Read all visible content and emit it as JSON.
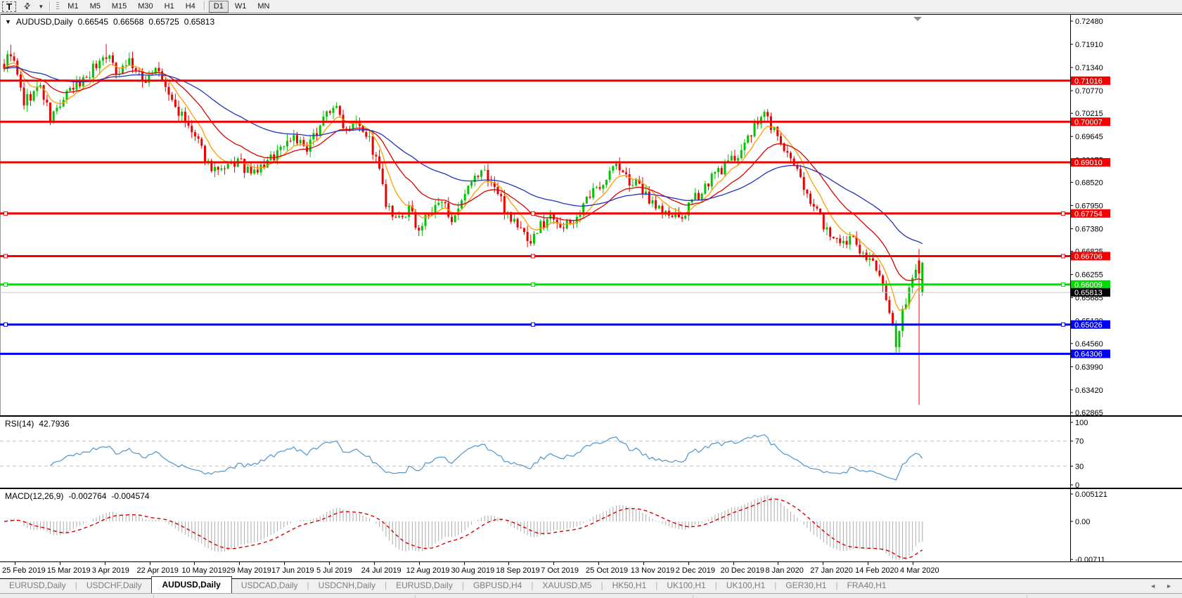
{
  "toolbar": {
    "text_tool": "T",
    "cursor_tool_icon": "crosshair-arrows",
    "timeframes": [
      "M1",
      "M5",
      "M15",
      "M30",
      "H1",
      "H4",
      "D1",
      "W1",
      "MN"
    ],
    "active_timeframe": "D1"
  },
  "chart": {
    "symbol_label": "AUDUSD,Daily",
    "ohlc": {
      "open": "0.66545",
      "high": "0.66568",
      "low": "0.65725",
      "close": "0.65813"
    },
    "price_axis": {
      "ticks": [
        "0.72480",
        "0.71910",
        "0.71340",
        "0.70770",
        "0.70215",
        "0.69645",
        "0.69075",
        "0.68520",
        "0.67950",
        "0.67380",
        "0.66825",
        "0.66255",
        "0.65685",
        "0.65120",
        "0.64560",
        "0.63990",
        "0.63420",
        "0.62865"
      ]
    },
    "hlines": [
      {
        "label": "0.71016",
        "price": 0.71016,
        "color": "#F40000",
        "width": 3,
        "handles": false
      },
      {
        "label": "0.70007",
        "price": 0.70007,
        "color": "#F40000",
        "width": 3,
        "handles": false
      },
      {
        "label": "0.69010",
        "price": 0.6901,
        "color": "#F40000",
        "width": 3,
        "handles": false
      },
      {
        "label": "0.67754",
        "price": 0.67754,
        "color": "#F40000",
        "width": 3,
        "handles": true
      },
      {
        "label": "0.66706",
        "price": 0.66706,
        "color": "#F40000",
        "width": 3,
        "handles": true
      },
      {
        "label": "0.66009",
        "price": 0.66009,
        "color": "#00DC00",
        "width": 3,
        "handles": true
      },
      {
        "label": "0.65026",
        "price": 0.65026,
        "color": "#0000F0",
        "width": 3,
        "handles": true
      },
      {
        "label": "0.64306",
        "price": 0.64306,
        "color": "#0000F0",
        "width": 3,
        "handles": false
      }
    ],
    "bid_line": {
      "label": "0.65813",
      "price": 0.65813,
      "line_color": "#C8C8C8",
      "box_color": "#000000"
    },
    "dates": [
      "25 Feb 2019",
      "15 Mar 2019",
      "3 Apr 2019",
      "22 Apr 2019",
      "10 May 2019",
      "29 May 2019",
      "17 Jun 2019",
      "5 Jul 2019",
      "24 Jul 2019",
      "12 Aug 2019",
      "30 Aug 2019",
      "18 Sep 2019",
      "7 Oct 2019",
      "25 Oct 2019",
      "13 Nov 2019",
      "2 Dec 2019",
      "20 Dec 2019",
      "8 Jan 2020",
      "27 Jan 2020",
      "14 Feb 2020",
      "4 Mar 2020"
    ]
  },
  "rsi": {
    "name": "RSI(14)",
    "value": "42.7936",
    "period": 14,
    "axis_labels": [
      "100",
      "70",
      "30",
      "0"
    ],
    "axis_values": [
      100,
      70,
      30,
      0
    ],
    "dashed_levels": [
      70,
      30
    ],
    "line_color": "#4f94cd"
  },
  "macd": {
    "name": "MACD(12,26,9)",
    "value_main": "-0.002764",
    "value_signal": "-0.004574",
    "fast": 12,
    "slow": 26,
    "signal": 9,
    "axis_labels": [
      "0.005121",
      "0.00",
      "-0.00711"
    ],
    "axis_values": [
      0.005121,
      0,
      -0.00711
    ],
    "histogram_color": "#ababab",
    "signal_color": "#d40000"
  },
  "tabs": {
    "active_index": 2,
    "items": [
      "EURUSD,Daily",
      "USDCHF,Daily",
      "AUDUSD,Daily",
      "USDCAD,Daily",
      "USDCNH,Daily",
      "EURUSD,Daily",
      "GBPUSD,H4",
      "XAUUSD,M5",
      "HK50,H1",
      "UK100,H1",
      "UK100,H1",
      "GER30,H1",
      "FRA40,H1"
    ],
    "nav_left": "◄",
    "nav_right": "►"
  },
  "chart_data": {
    "type": "candlestick",
    "symbol": "AUDUSD",
    "timeframe": "Daily",
    "price_range": [
      0.62865,
      0.7248
    ],
    "bars_count": 280,
    "seed": 9,
    "wiggle": 0.0015,
    "close_anchors": [
      [
        0,
        0.714
      ],
      [
        2,
        0.7172
      ],
      [
        6,
        0.7048
      ],
      [
        11,
        0.7088
      ],
      [
        14,
        0.7008
      ],
      [
        19,
        0.7065
      ],
      [
        24,
        0.7105
      ],
      [
        31,
        0.7168
      ],
      [
        34,
        0.7125
      ],
      [
        38,
        0.7152
      ],
      [
        42,
        0.7098
      ],
      [
        46,
        0.7132
      ],
      [
        51,
        0.705
      ],
      [
        55,
        0.7
      ],
      [
        58,
        0.696
      ],
      [
        62,
        0.6898
      ],
      [
        66,
        0.6872
      ],
      [
        71,
        0.6905
      ],
      [
        75,
        0.6868
      ],
      [
        80,
        0.69
      ],
      [
        84,
        0.6938
      ],
      [
        88,
        0.6968
      ],
      [
        92,
        0.6925
      ],
      [
        96,
        0.7
      ],
      [
        100,
        0.7042
      ],
      [
        104,
        0.6985
      ],
      [
        107,
        0.7015
      ],
      [
        111,
        0.6955
      ],
      [
        114,
        0.688
      ],
      [
        116,
        0.6795
      ],
      [
        119,
        0.6752
      ],
      [
        123,
        0.6782
      ],
      [
        126,
        0.6738
      ],
      [
        129,
        0.6772
      ],
      [
        133,
        0.6802
      ],
      [
        137,
        0.6758
      ],
      [
        141,
        0.6832
      ],
      [
        145,
        0.6882
      ],
      [
        148,
        0.6855
      ],
      [
        152,
        0.679
      ],
      [
        156,
        0.6744
      ],
      [
        160,
        0.6708
      ],
      [
        163,
        0.6745
      ],
      [
        167,
        0.6775
      ],
      [
        170,
        0.6738
      ],
      [
        174,
        0.6768
      ],
      [
        178,
        0.6815
      ],
      [
        182,
        0.6858
      ],
      [
        186,
        0.6895
      ],
      [
        189,
        0.6862
      ],
      [
        193,
        0.6838
      ],
      [
        197,
        0.6805
      ],
      [
        201,
        0.6775
      ],
      [
        205,
        0.6758
      ],
      [
        209,
        0.68
      ],
      [
        213,
        0.6845
      ],
      [
        217,
        0.6878
      ],
      [
        221,
        0.6905
      ],
      [
        225,
        0.6945
      ],
      [
        229,
        0.7
      ],
      [
        231,
        0.702
      ],
      [
        234,
        0.698
      ],
      [
        238,
        0.6918
      ],
      [
        242,
        0.6858
      ],
      [
        246,
        0.6798
      ],
      [
        250,
        0.6735
      ],
      [
        254,
        0.6688
      ],
      [
        258,
        0.6718
      ],
      [
        261,
        0.6678
      ],
      [
        264,
        0.6648
      ],
      [
        267,
        0.6598
      ],
      [
        269,
        0.654
      ],
      [
        271,
        0.6452
      ],
      [
        273,
        0.6528
      ],
      [
        275,
        0.6598
      ],
      [
        277,
        0.6642
      ],
      [
        278,
        0.6628
      ],
      [
        279,
        0.65813
      ]
    ],
    "overrides": {
      "2": {
        "h": 0.719
      },
      "31": {
        "h": 0.7192
      },
      "271": {
        "l": 0.6433,
        "color": "up"
      },
      "278": {
        "o": 0.666,
        "h": 0.6688,
        "l": 0.6305,
        "c": 0.6628
      },
      "279": {
        "o": 0.66545,
        "h": 0.66568,
        "l": 0.65725,
        "c": 0.65813,
        "color": "up"
      }
    },
    "up_color": "#00C400",
    "down_color": "#EE0000",
    "moving_averages": [
      {
        "name": "fast",
        "period": 8,
        "color": "#FF9C00"
      },
      {
        "name": "medium",
        "period": 21,
        "color": "#D90000"
      },
      {
        "name": "slow",
        "period": 55,
        "color": "#2233BB"
      }
    ]
  }
}
